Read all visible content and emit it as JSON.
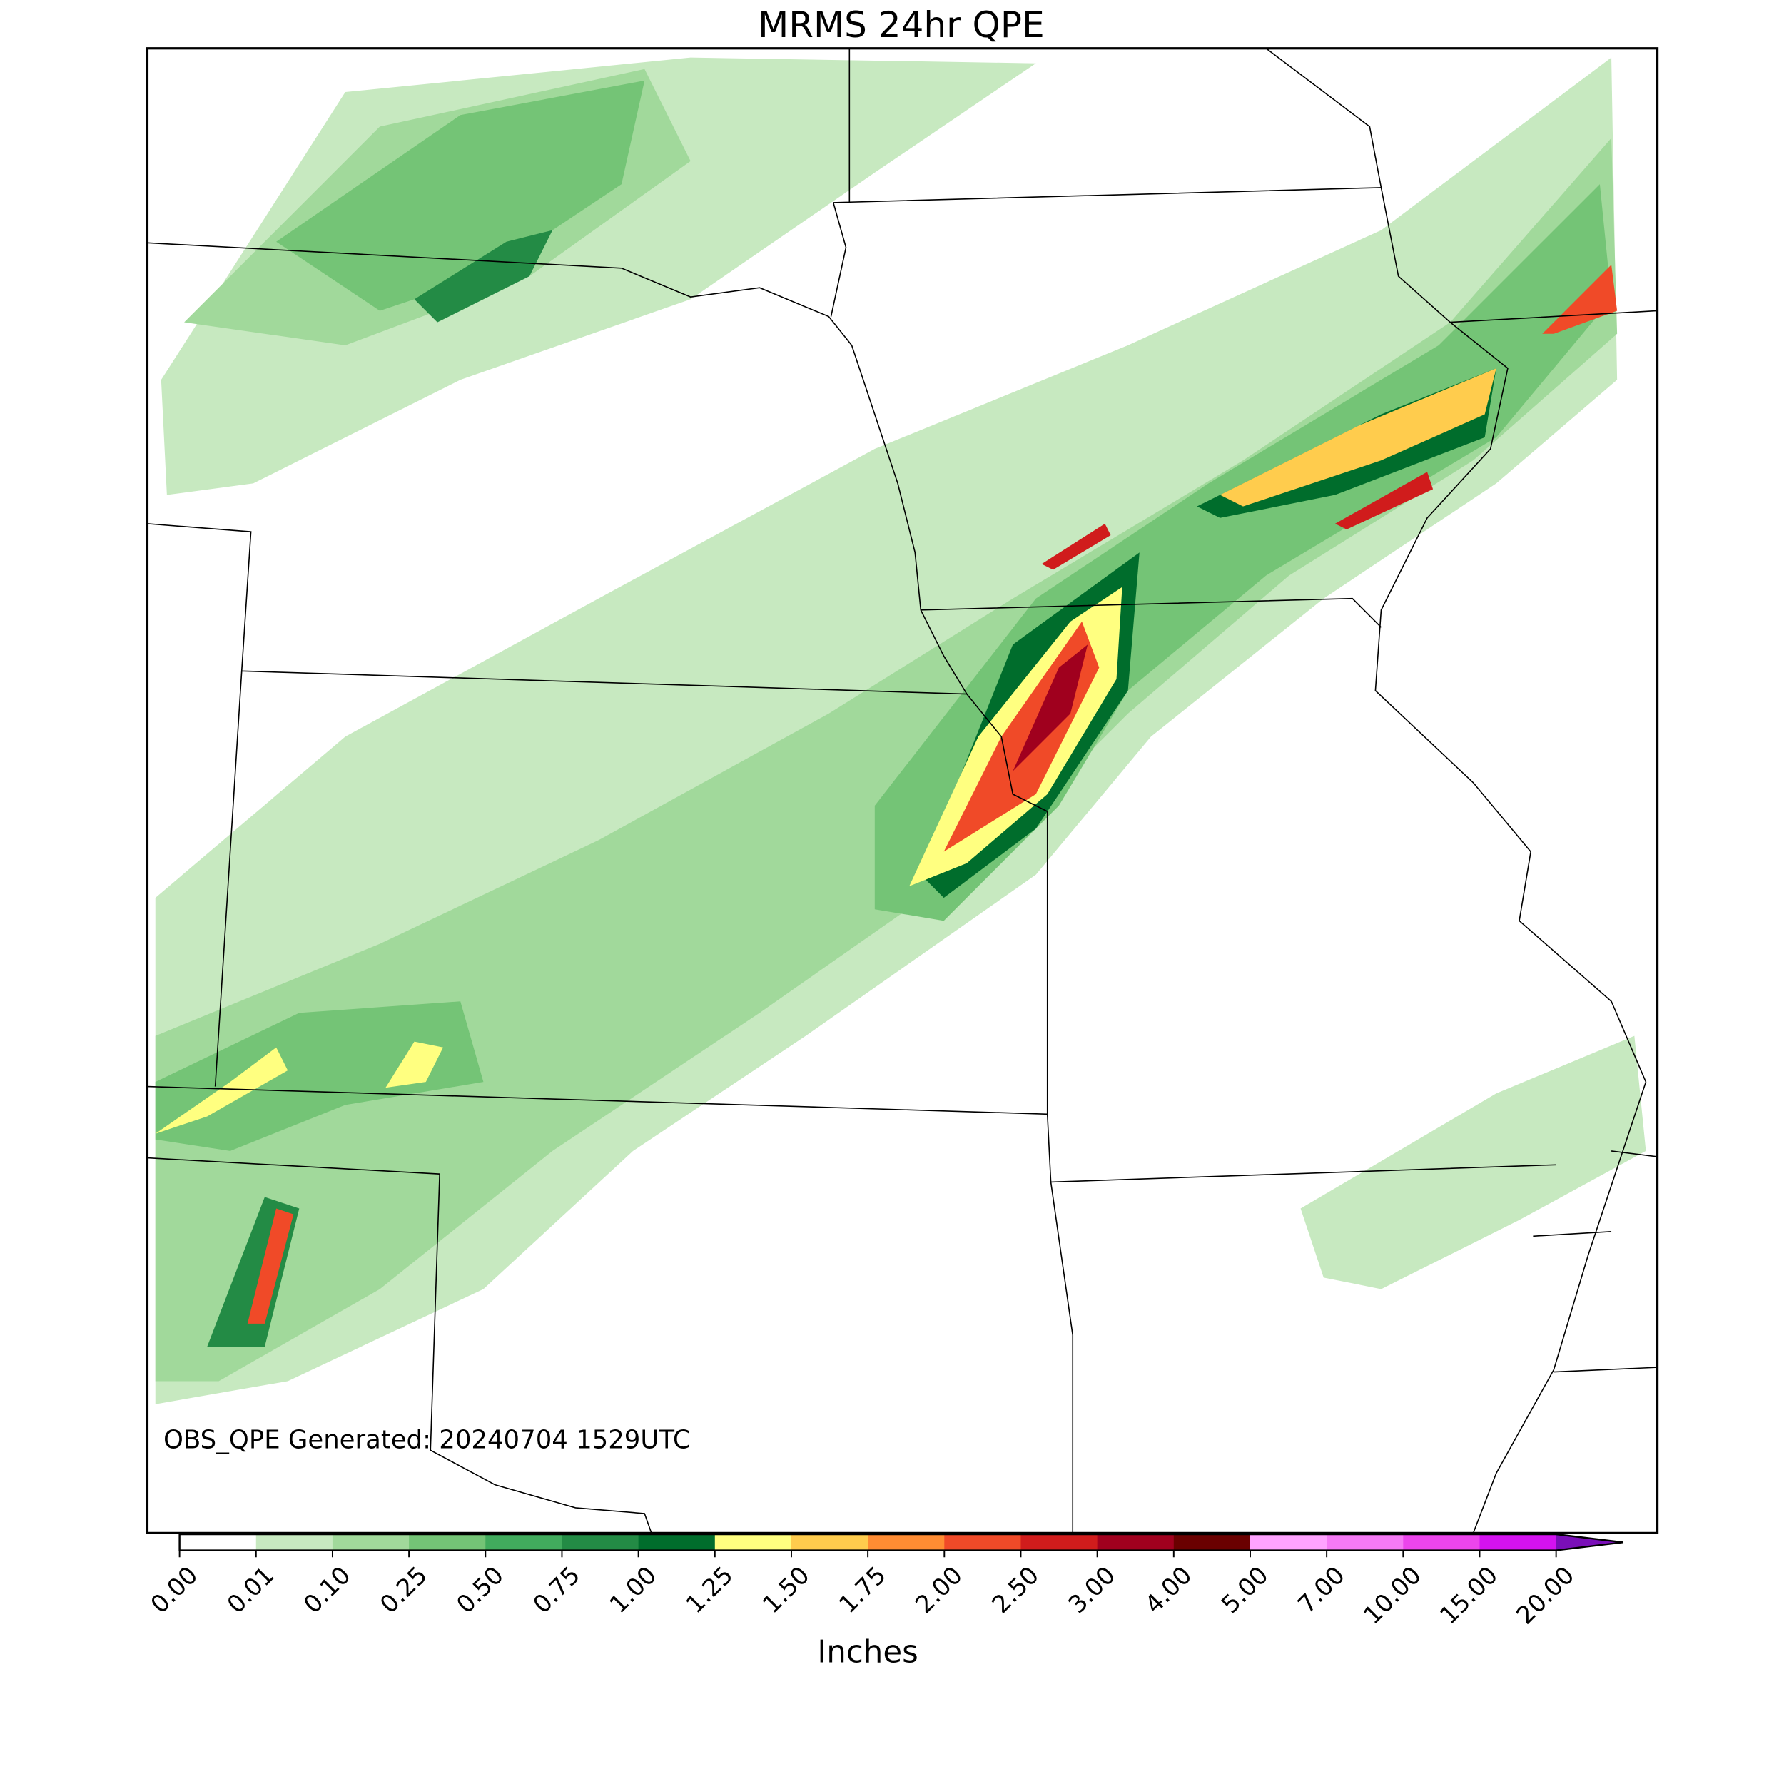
{
  "title": "MRMS 24hr QPE",
  "annotation": "OBS_QPE Generated: 20240704 1529UTC",
  "colorbar": {
    "label": "Inches",
    "ticks": [
      {
        "value": 0,
        "label": "0.00"
      },
      {
        "value": 0.01,
        "label": "0.01"
      },
      {
        "value": 0.1,
        "label": "0.10"
      },
      {
        "value": 0.25,
        "label": "0.25"
      },
      {
        "value": 0.5,
        "label": "0.50"
      },
      {
        "value": 0.75,
        "label": "0.75"
      },
      {
        "value": 1,
        "label": "1.00"
      },
      {
        "value": 1.25,
        "label": "1.25"
      },
      {
        "value": 1.5,
        "label": "1.50"
      },
      {
        "value": 1.75,
        "label": "1.75"
      },
      {
        "value": 2,
        "label": "2.00"
      },
      {
        "value": 2.5,
        "label": "2.50"
      },
      {
        "value": 3,
        "label": "3.00"
      },
      {
        "value": 4,
        "label": "4.00"
      },
      {
        "value": 5,
        "label": "5.00"
      },
      {
        "value": 7,
        "label": "7.00"
      },
      {
        "value": 10,
        "label": "10.00"
      },
      {
        "value": 15,
        "label": "15.00"
      },
      {
        "value": 20,
        "label": "20.00"
      }
    ],
    "colors": [
      "#ffffff",
      "#c7e9c0",
      "#a1d99b",
      "#74c476",
      "#41ab5d",
      "#238b45",
      "#006d2c",
      "#ffff80",
      "#ffcc4d",
      "#ff8c33",
      "#f04a28",
      "#d01c1c",
      "#a0001e",
      "#6a0000",
      "#ffa3ff",
      "#f57af5",
      "#ec45ec",
      "#d412f0",
      "#9a18d8"
    ],
    "extend_color": "#7a0fb8"
  }
}
